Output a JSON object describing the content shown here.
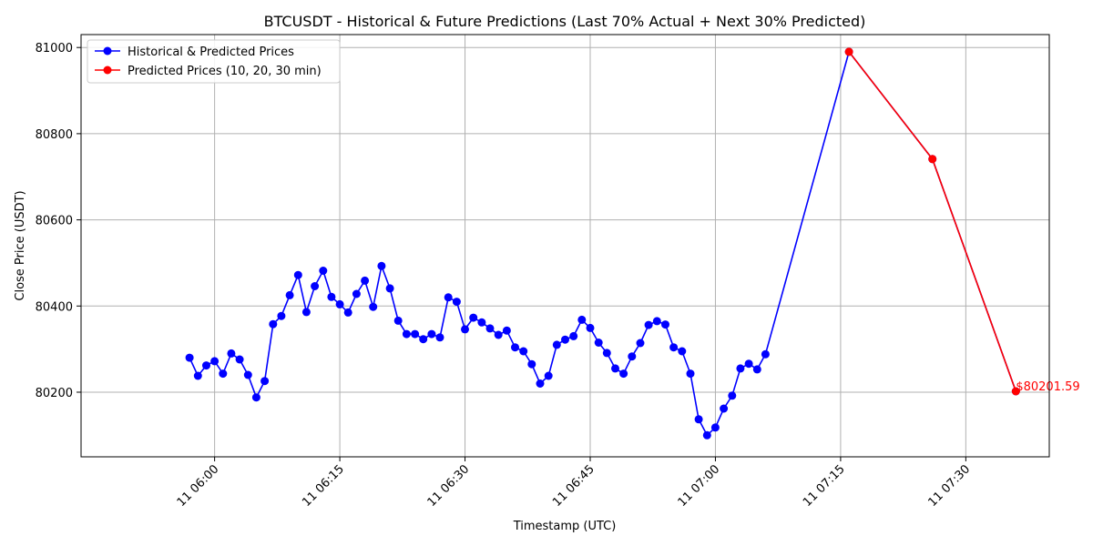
{
  "chart_data": {
    "type": "line",
    "title": "BTCUSDT - Historical & Future Predictions (Last 70% Actual + Next 30% Predicted)",
    "xlabel": "Timestamp (UTC)",
    "ylabel": "Close Price (USDT)",
    "xlim": [
      "11 05:44",
      "11 07:40"
    ],
    "ylim": [
      80050,
      81030
    ],
    "x_ticks": [
      "11 06:00",
      "11 06:15",
      "11 06:30",
      "11 06:45",
      "11 07:00",
      "11 07:15",
      "11 07:30"
    ],
    "y_ticks": [
      80200,
      80400,
      80600,
      80800,
      81000
    ],
    "grid": true,
    "legend_position": "top-left",
    "series": [
      {
        "name": "Historical & Predicted Prices",
        "color": "#0000ff",
        "x": [
          "11 05:57",
          "11 05:58",
          "11 05:59",
          "11 06:00",
          "11 06:01",
          "11 06:02",
          "11 06:03",
          "11 06:04",
          "11 06:05",
          "11 06:06",
          "11 06:07",
          "11 06:08",
          "11 06:09",
          "11 06:10",
          "11 06:11",
          "11 06:12",
          "11 06:13",
          "11 06:14",
          "11 06:15",
          "11 06:16",
          "11 06:17",
          "11 06:18",
          "11 06:19",
          "11 06:20",
          "11 06:21",
          "11 06:22",
          "11 06:23",
          "11 06:24",
          "11 06:25",
          "11 06:26",
          "11 06:27",
          "11 06:28",
          "11 06:29",
          "11 06:30",
          "11 06:31",
          "11 06:32",
          "11 06:33",
          "11 06:34",
          "11 06:35",
          "11 06:36",
          "11 06:37",
          "11 06:38",
          "11 06:39",
          "11 06:40",
          "11 06:41",
          "11 06:42",
          "11 06:43",
          "11 06:44",
          "11 06:45",
          "11 06:46",
          "11 06:47",
          "11 06:48",
          "11 06:49",
          "11 06:50",
          "11 06:51",
          "11 06:52",
          "11 06:53",
          "11 06:54",
          "11 06:55",
          "11 06:56",
          "11 06:57",
          "11 06:58",
          "11 06:59",
          "11 07:00",
          "11 07:01",
          "11 07:02",
          "11 07:03",
          "11 07:04",
          "11 07:05",
          "11 07:06",
          "11 07:16",
          "11 07:26",
          "11 07:36"
        ],
        "values": [
          80280,
          80238,
          80262,
          80272,
          80243,
          80290,
          80276,
          80240,
          80188,
          80226,
          80358,
          80377,
          80425,
          80472,
          80386,
          80446,
          80482,
          80421,
          80404,
          80385,
          80428,
          80459,
          80398,
          80493,
          80441,
          80366,
          80335,
          80335,
          80323,
          80335,
          80327,
          80420,
          80410,
          80346,
          80373,
          80362,
          80348,
          80333,
          80343,
          80304,
          80295,
          80265,
          80220,
          80238,
          80310,
          80322,
          80330,
          80368,
          80349,
          80315,
          80291,
          80255,
          80243,
          80283,
          80314,
          80356,
          80365,
          80357,
          80304,
          80295,
          80243,
          80137,
          80100,
          80118,
          80162,
          80192,
          80255,
          80266,
          80253,
          80288,
          80990,
          80741,
          80202
        ]
      },
      {
        "name": "Predicted Prices (10, 20, 30 min)",
        "color": "#ff0000",
        "x": [
          "11 07:16",
          "11 07:26",
          "11 07:36"
        ],
        "values": [
          80990,
          80741,
          80202
        ]
      }
    ],
    "annotations": [
      {
        "text": "$80201.59",
        "x": "11 07:36",
        "y": 80202,
        "color": "#ff0000"
      }
    ]
  }
}
